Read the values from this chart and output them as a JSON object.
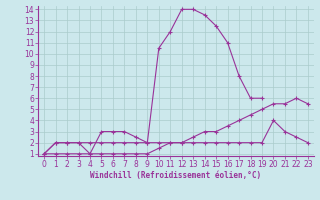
{
  "xlabel": "Windchill (Refroidissement éolien,°C)",
  "xlim": [
    -0.5,
    23.5
  ],
  "ylim": [
    0.8,
    14.3
  ],
  "xticks": [
    0,
    1,
    2,
    3,
    4,
    5,
    6,
    7,
    8,
    9,
    10,
    11,
    12,
    13,
    14,
    15,
    16,
    17,
    18,
    19,
    20,
    21,
    22,
    23
  ],
  "yticks": [
    1,
    2,
    3,
    4,
    5,
    6,
    7,
    8,
    9,
    10,
    11,
    12,
    13,
    14
  ],
  "bg_color": "#cce8ec",
  "line_color": "#993399",
  "grid_color": "#aacccc",
  "s1_x": [
    0,
    1,
    2,
    3,
    4,
    5,
    6,
    7,
    8,
    9,
    10,
    11,
    12,
    13,
    14,
    15,
    16,
    17,
    18,
    19
  ],
  "s1_y": [
    1,
    2,
    2,
    2,
    2,
    2,
    2,
    2,
    2,
    2,
    10.5,
    12,
    14,
    14,
    13.5,
    12.5,
    11,
    8,
    6,
    6
  ],
  "s2_x": [
    0,
    1,
    2,
    3,
    4,
    5,
    6,
    7,
    8,
    9,
    10,
    11,
    12,
    13,
    14,
    15,
    16,
    17,
    18,
    19,
    20,
    21,
    22,
    23
  ],
  "s2_y": [
    1,
    1,
    1,
    1,
    1,
    1,
    1,
    1,
    1,
    1,
    1.5,
    2,
    2,
    2.5,
    3,
    3,
    3.5,
    4,
    4.5,
    5,
    5.5,
    5.5,
    6,
    5.5
  ],
  "s3_x": [
    0,
    1,
    2,
    3,
    4,
    5,
    6,
    7,
    8,
    9,
    10,
    11,
    12,
    13,
    14,
    15,
    16,
    17,
    18,
    19,
    20,
    21,
    22,
    23
  ],
  "s3_y": [
    1,
    2,
    2,
    2,
    1,
    3,
    3,
    3,
    2.5,
    2,
    2,
    2,
    2,
    2,
    2,
    2,
    2,
    2,
    2,
    2,
    4,
    3,
    2.5,
    2
  ],
  "tick_fontsize": 5.5,
  "xlabel_fontsize": 5.5
}
